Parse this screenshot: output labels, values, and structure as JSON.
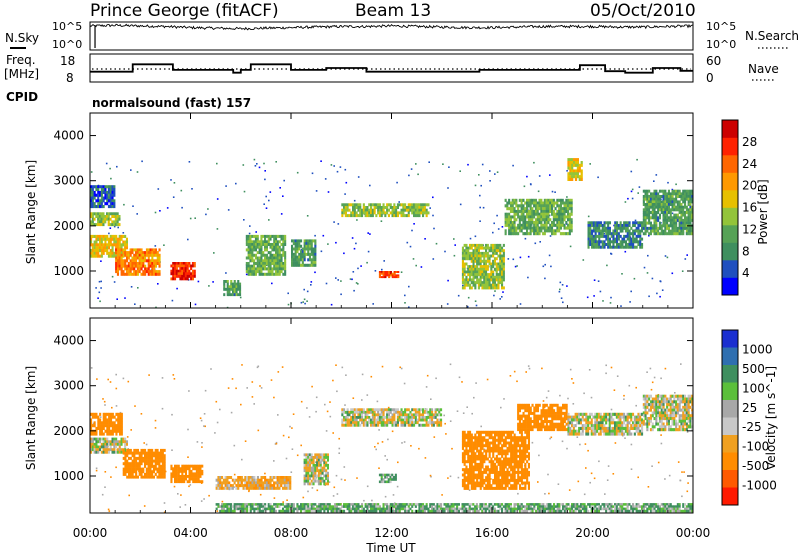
{
  "header": {
    "station": "Prince George (fitACF)",
    "beam": "Beam 13",
    "date": "05/Oct/2010"
  },
  "top_strip": {
    "left_label": "N.Sky",
    "right_label": "N.Search",
    "ticks_left": [
      "10^5",
      "10^0"
    ],
    "ticks_right": [
      "10^5",
      "10^0"
    ]
  },
  "freq_strip": {
    "left_label_1": "Freq.",
    "left_label_2": "[MHz]",
    "left_ticks": [
      "18",
      "8"
    ],
    "right_label": "Nave",
    "right_ticks": [
      "60",
      "0"
    ]
  },
  "cpid": {
    "label": "CPID",
    "text": "normalsound (fast) 157"
  },
  "colors": {
    "power": [
      "#0000ff",
      "#1f4fbf",
      "#3f8f5f",
      "#56a256",
      "#93c43a",
      "#e6c000",
      "#ff9900",
      "#ff6600",
      "#ff2200",
      "#cc0000"
    ],
    "velocity": [
      "#1a2fd0",
      "#2f6fb0",
      "#3f8f5f",
      "#5bbf3a",
      "#a8a8a8",
      "#c8c8c8",
      "#f0a020",
      "#ff8c00",
      "#ff5a00",
      "#ff1a00"
    ]
  },
  "chart_data": [
    {
      "type": "line",
      "title": "",
      "series": [
        {
          "name": "N.Sky",
          "x": [
            0,
            1,
            2,
            3,
            4,
            5,
            6,
            7,
            8,
            9,
            10,
            11,
            12,
            13,
            14,
            15,
            16,
            17,
            18,
            19,
            20,
            21,
            22,
            23,
            24
          ],
          "y": [
            4.3,
            4.4,
            4.3,
            4.2,
            4.0,
            3.9,
            3.8,
            3.9,
            4.0,
            4.1,
            4.2,
            4.2,
            4.3,
            4.2,
            4.1,
            4.0,
            4.0,
            4.1,
            4.2,
            4.2,
            4.2,
            4.1,
            4.1,
            4.2,
            4.3
          ]
        }
      ],
      "xlim": [
        0,
        24
      ],
      "ylim": [
        0,
        5
      ],
      "y_ticks": [
        "10^0",
        "10^5"
      ]
    },
    {
      "type": "line",
      "series": [
        {
          "name": "Freq.",
          "x": [
            0,
            1.7,
            1.7,
            3.3,
            3.3,
            5.7,
            5.7,
            6.0,
            6.0,
            6.4,
            6.4,
            8.0,
            8.0,
            9.4,
            9.4,
            11.0,
            11.0,
            13.0,
            13.0,
            15.5,
            15.5,
            19.5,
            19.5,
            20.5,
            20.5,
            21.3,
            21.3,
            22.4,
            22.4,
            23.5,
            23.5,
            24
          ],
          "y": [
            10.5,
            10.5,
            14.5,
            14.5,
            11.5,
            11.5,
            10.0,
            10.0,
            11.5,
            11.5,
            14.5,
            14.5,
            11.5,
            11.5,
            12.5,
            12.5,
            10.5,
            10.5,
            10.5,
            10.5,
            11.5,
            11.5,
            14.0,
            14.0,
            10.8,
            10.8,
            10.0,
            10.0,
            12.5,
            12.5,
            11.0,
            11.0
          ]
        }
      ],
      "xlim": [
        0,
        24
      ],
      "ylim": [
        5,
        20
      ],
      "y_ticks": [
        8,
        18
      ]
    },
    {
      "type": "heatmap",
      "xlabel": "",
      "ylabel": "Slant Range [km]",
      "colorbar_label": "Power [dB]",
      "colorbar_ticks": [
        4,
        8,
        12,
        16,
        20,
        24,
        28
      ],
      "xlim": [
        0,
        24
      ],
      "ylim": [
        180,
        4500
      ],
      "x_ticks": [
        "00:00",
        "04:00",
        "08:00",
        "12:00",
        "16:00",
        "20:00",
        "00:00"
      ],
      "y_ticks": [
        1000,
        2000,
        3000,
        4000
      ],
      "bands": [
        {
          "x": [
            0,
            1.5
          ],
          "y": [
            1300,
            1800
          ],
          "value": 18
        },
        {
          "x": [
            0,
            1.2
          ],
          "y": [
            2000,
            2300
          ],
          "value": 14
        },
        {
          "x": [
            0,
            1.0
          ],
          "y": [
            2400,
            2900
          ],
          "value": 6
        },
        {
          "x": [
            1.0,
            2.8
          ],
          "y": [
            900,
            1500
          ],
          "value": 22
        },
        {
          "x": [
            3.2,
            4.2
          ],
          "y": [
            800,
            1200
          ],
          "value": 28
        },
        {
          "x": [
            5.3,
            6.0
          ],
          "y": [
            450,
            800
          ],
          "value": 10
        },
        {
          "x": [
            6.2,
            7.8
          ],
          "y": [
            900,
            1800
          ],
          "value": 12
        },
        {
          "x": [
            8.0,
            9.0
          ],
          "y": [
            1100,
            1700
          ],
          "value": 10
        },
        {
          "x": [
            10.0,
            13.5
          ],
          "y": [
            2200,
            2500
          ],
          "value": 14
        },
        {
          "x": [
            11.5,
            12.3
          ],
          "y": [
            850,
            1000
          ],
          "value": 26
        },
        {
          "x": [
            14.8,
            16.5
          ],
          "y": [
            600,
            1600
          ],
          "value": 14
        },
        {
          "x": [
            16.5,
            19.2
          ],
          "y": [
            1800,
            2600
          ],
          "value": 12
        },
        {
          "x": [
            19.0,
            19.6
          ],
          "y": [
            3000,
            3500
          ],
          "value": 18
        },
        {
          "x": [
            19.8,
            22.0
          ],
          "y": [
            1500,
            2100
          ],
          "value": 8
        },
        {
          "x": [
            22.0,
            24
          ],
          "y": [
            1800,
            2800
          ],
          "value": 10
        }
      ]
    },
    {
      "type": "heatmap",
      "xlabel": "Time UT",
      "ylabel": "Slant Range [km]",
      "colorbar_label": "Velocity [m s^-1]",
      "colorbar_ticks": [
        1000,
        500,
        100,
        25,
        -25,
        -100,
        -500,
        -1000
      ],
      "xlim": [
        0,
        24
      ],
      "ylim": [
        180,
        4500
      ],
      "x_ticks": [
        "00:00",
        "04:00",
        "08:00",
        "12:00",
        "16:00",
        "20:00",
        "00:00"
      ],
      "y_ticks": [
        1000,
        2000,
        3000,
        4000
      ],
      "bands": [
        {
          "x": [
            0,
            1.5
          ],
          "y": [
            1500,
            1850
          ],
          "value": 0
        },
        {
          "x": [
            0,
            1.3
          ],
          "y": [
            1900,
            2400
          ],
          "value": -200
        },
        {
          "x": [
            1.3,
            3.0
          ],
          "y": [
            950,
            1600
          ],
          "value": -200
        },
        {
          "x": [
            3.2,
            4.5
          ],
          "y": [
            850,
            1250
          ],
          "value": -200
        },
        {
          "x": [
            5.0,
            8.0
          ],
          "y": [
            700,
            1000
          ],
          "value": -60
        },
        {
          "x": [
            8.5,
            9.5
          ],
          "y": [
            800,
            1500
          ],
          "value": 0
        },
        {
          "x": [
            10.0,
            14.0
          ],
          "y": [
            2100,
            2500
          ],
          "value": 0
        },
        {
          "x": [
            11.5,
            12.2
          ],
          "y": [
            850,
            1050
          ],
          "value": 60
        },
        {
          "x": [
            14.8,
            17.5
          ],
          "y": [
            700,
            2000
          ],
          "value": -200
        },
        {
          "x": [
            17.0,
            19.0
          ],
          "y": [
            2000,
            2600
          ],
          "value": -200
        },
        {
          "x": [
            19.0,
            22.0
          ],
          "y": [
            1900,
            2400
          ],
          "value": 0
        },
        {
          "x": [
            22.0,
            24
          ],
          "y": [
            2000,
            2800
          ],
          "value": 0
        },
        {
          "x": [
            5.0,
            24
          ],
          "y": [
            200,
            400
          ],
          "value": 60
        }
      ]
    }
  ]
}
